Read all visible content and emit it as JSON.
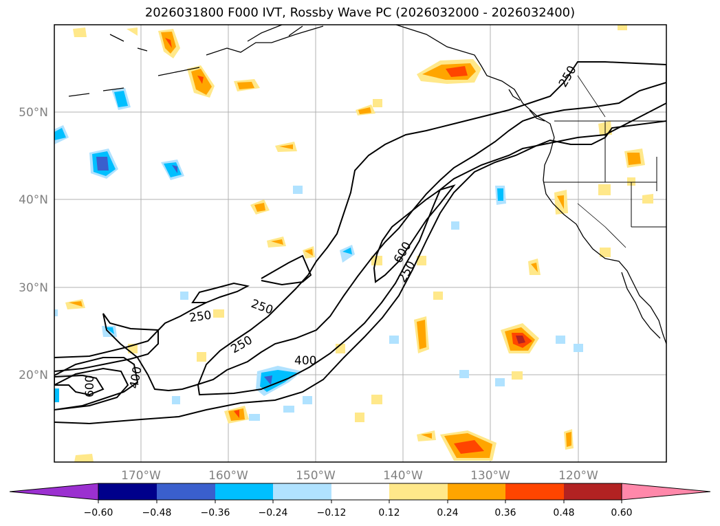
{
  "title": "2026031800 F000 IVT, Rossby Wave PC (2026032000 - 2026032400)",
  "lat_labels": [
    "50°N",
    "40°N",
    "30°N",
    "20°N"
  ],
  "lon_labels": [
    "170°W",
    "160°W",
    "150°W",
    "140°W",
    "130°W",
    "120°W"
  ],
  "contour_labels": [
    "250",
    "250",
    "250",
    "250",
    "250",
    "400",
    "400",
    "600",
    "600"
  ],
  "colorbar": {
    "ticks": [
      "−0.60",
      "−0.48",
      "−0.36",
      "−0.24",
      "−0.12",
      "0.12",
      "0.24",
      "0.36",
      "0.48",
      "0.60"
    ],
    "colors": [
      "#9b30d0",
      "#00008b",
      "#3a5fcd",
      "#00bfff",
      "#b0e2ff",
      "#ffffff",
      "#ffe88a",
      "#ffa500",
      "#ff4500",
      "#b22222",
      "#ff88aa"
    ]
  }
}
